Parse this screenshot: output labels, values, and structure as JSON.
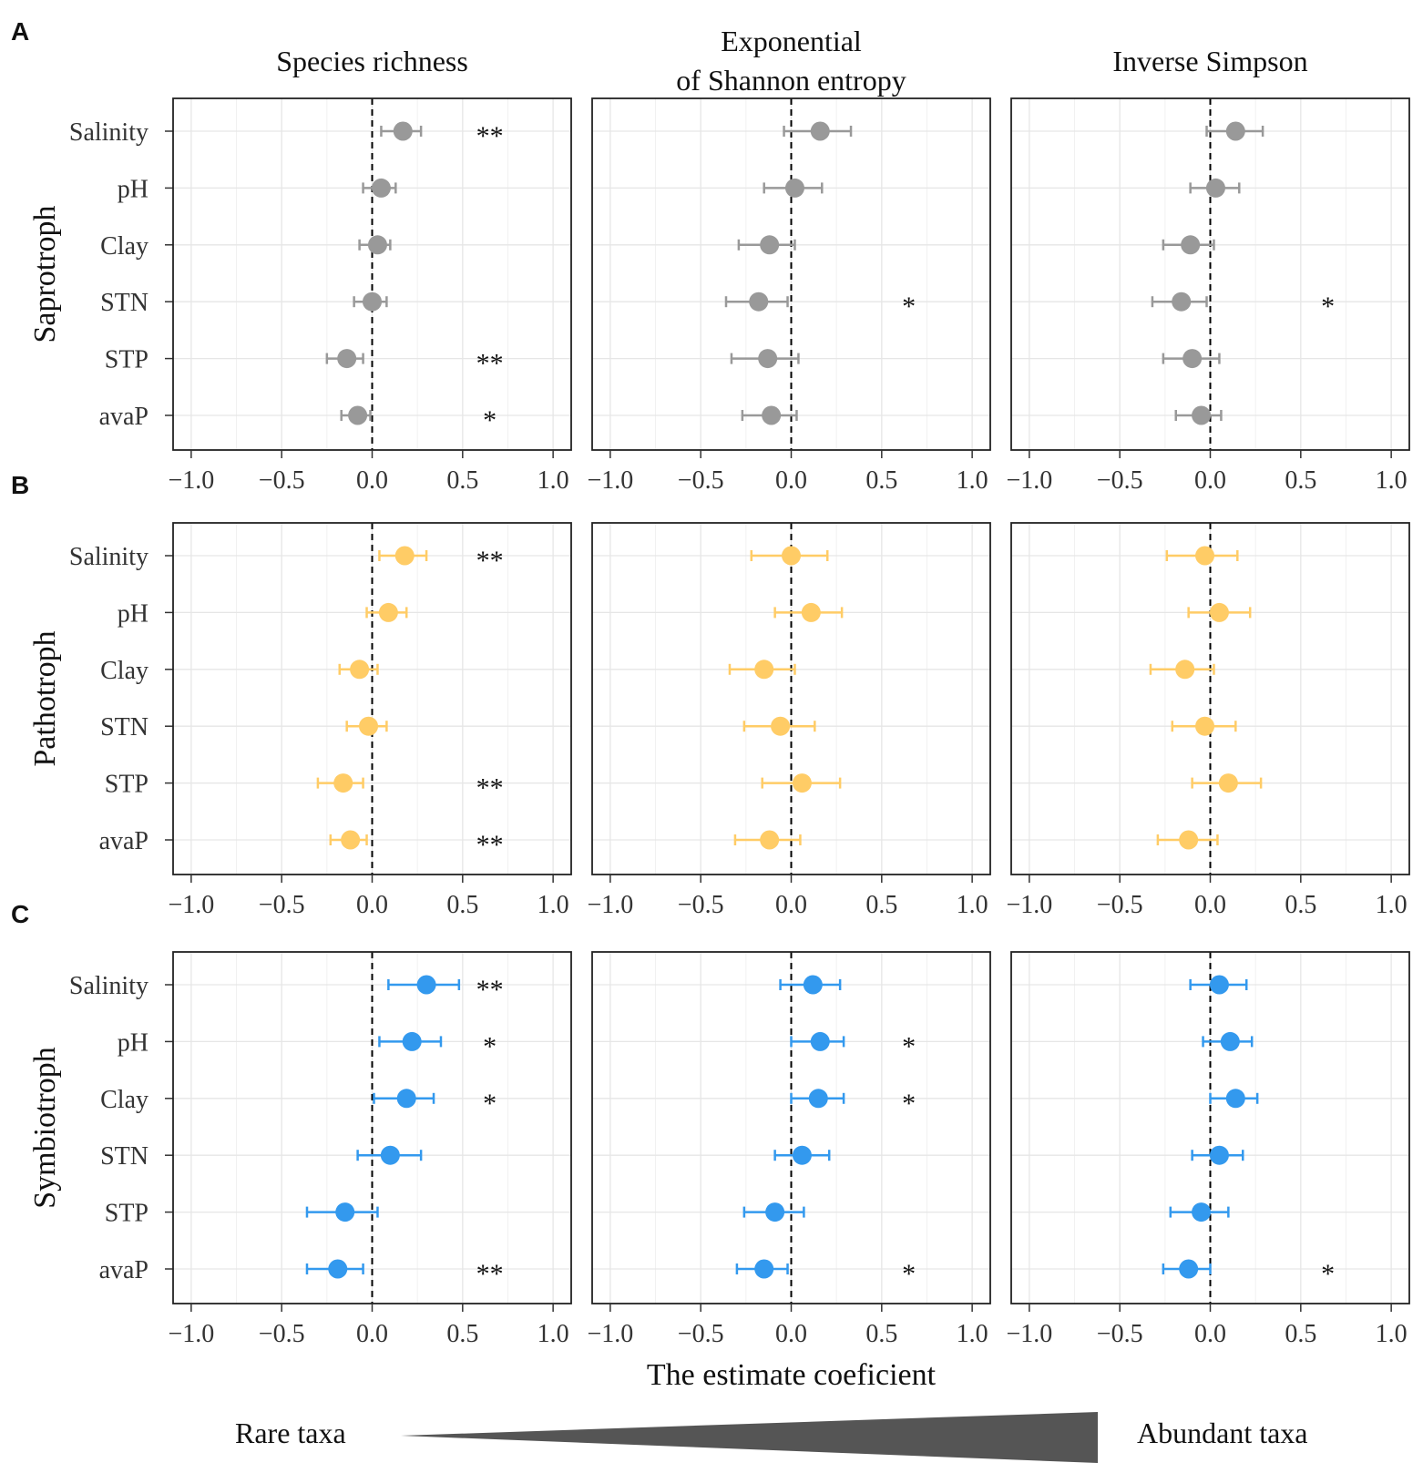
{
  "figure": {
    "column_titles": [
      {
        "lines": [
          "Species richness"
        ]
      },
      {
        "lines": [
          "Exponential",
          "of Shannon entropy"
        ]
      },
      {
        "lines": [
          "Inverse Simpson"
        ]
      }
    ],
    "xlabel": "The estimate coeficient",
    "gradient": {
      "left_label": "Rare taxa",
      "right_label": "Abundant taxa",
      "color": "#555555"
    },
    "xlim": [
      -1.1,
      1.1
    ],
    "xticks": [
      -1.0,
      -0.5,
      0.0,
      0.5,
      1.0
    ],
    "xtick_labels": [
      "−1.0",
      "−0.5",
      "0.0",
      "0.5",
      "1.0"
    ],
    "variables": [
      "Salinity",
      "pH",
      "Clay",
      "STN",
      "STP",
      "avaP"
    ]
  },
  "chart_data": [
    {
      "panel_letter": "A",
      "type": "scatter",
      "group": "Saprotroph",
      "color": "#999999",
      "panels": [
        {
          "title": "Species richness",
          "estimates": [
            0.17,
            0.05,
            0.03,
            0.0,
            -0.14,
            -0.08
          ],
          "lower": [
            0.05,
            -0.05,
            -0.07,
            -0.1,
            -0.25,
            -0.17
          ],
          "upper": [
            0.27,
            0.13,
            0.1,
            0.08,
            -0.05,
            -0.01
          ],
          "significance": [
            "**",
            "",
            "",
            "",
            "**",
            "*"
          ]
        },
        {
          "title": "Exponential of Shannon entropy",
          "estimates": [
            0.16,
            0.02,
            -0.12,
            -0.18,
            -0.13,
            -0.11
          ],
          "lower": [
            -0.04,
            -0.15,
            -0.29,
            -0.36,
            -0.33,
            -0.27
          ],
          "upper": [
            0.33,
            0.17,
            0.02,
            -0.02,
            0.04,
            0.03
          ],
          "significance": [
            "",
            "",
            "",
            "*",
            "",
            ""
          ]
        },
        {
          "title": "Inverse Simpson",
          "estimates": [
            0.14,
            0.03,
            -0.11,
            -0.16,
            -0.1,
            -0.05
          ],
          "lower": [
            -0.02,
            -0.11,
            -0.26,
            -0.32,
            -0.26,
            -0.19
          ],
          "upper": [
            0.29,
            0.16,
            0.02,
            -0.02,
            0.05,
            0.06
          ],
          "significance": [
            "",
            "",
            "",
            "*",
            "",
            ""
          ]
        }
      ]
    },
    {
      "panel_letter": "B",
      "type": "scatter",
      "group": "Pathotroph",
      "color": "#FFCC66",
      "panels": [
        {
          "title": "Species richness",
          "estimates": [
            0.18,
            0.09,
            -0.07,
            -0.02,
            -0.16,
            -0.12
          ],
          "lower": [
            0.04,
            -0.03,
            -0.18,
            -0.14,
            -0.3,
            -0.23
          ],
          "upper": [
            0.3,
            0.19,
            0.03,
            0.08,
            -0.05,
            -0.03
          ],
          "significance": [
            "**",
            "",
            "",
            "",
            "**",
            "**"
          ]
        },
        {
          "title": "Exponential of Shannon entropy",
          "estimates": [
            0.0,
            0.11,
            -0.15,
            -0.06,
            0.06,
            -0.12
          ],
          "lower": [
            -0.22,
            -0.09,
            -0.34,
            -0.26,
            -0.16,
            -0.31
          ],
          "upper": [
            0.2,
            0.28,
            0.02,
            0.13,
            0.27,
            0.05
          ],
          "significance": [
            "",
            "",
            "",
            "",
            "",
            ""
          ]
        },
        {
          "title": "Inverse Simpson",
          "estimates": [
            -0.03,
            0.05,
            -0.14,
            -0.03,
            0.1,
            -0.12
          ],
          "lower": [
            -0.24,
            -0.12,
            -0.33,
            -0.21,
            -0.1,
            -0.29
          ],
          "upper": [
            0.15,
            0.22,
            0.02,
            0.14,
            0.28,
            0.04
          ],
          "significance": [
            "",
            "",
            "",
            "",
            "",
            ""
          ]
        }
      ]
    },
    {
      "panel_letter": "C",
      "type": "scatter",
      "group": "Symbiotroph",
      "color": "#3399EE",
      "panels": [
        {
          "title": "Species richness",
          "estimates": [
            0.3,
            0.22,
            0.19,
            0.1,
            -0.15,
            -0.19
          ],
          "lower": [
            0.09,
            0.04,
            0.01,
            -0.08,
            -0.36,
            -0.36
          ],
          "upper": [
            0.48,
            0.38,
            0.34,
            0.27,
            0.03,
            -0.05
          ],
          "significance": [
            "**",
            "*",
            "*",
            "",
            "",
            "**"
          ]
        },
        {
          "title": "Exponential of Shannon entropy",
          "estimates": [
            0.12,
            0.16,
            0.15,
            0.06,
            -0.09,
            -0.15
          ],
          "lower": [
            -0.06,
            0.0,
            0.0,
            -0.09,
            -0.26,
            -0.3
          ],
          "upper": [
            0.27,
            0.29,
            0.29,
            0.21,
            0.07,
            -0.02
          ],
          "significance": [
            "",
            "*",
            "*",
            "",
            "",
            "*"
          ]
        },
        {
          "title": "Inverse Simpson",
          "estimates": [
            0.05,
            0.11,
            0.14,
            0.05,
            -0.05,
            -0.12
          ],
          "lower": [
            -0.11,
            -0.04,
            0.0,
            -0.1,
            -0.22,
            -0.26
          ],
          "upper": [
            0.2,
            0.23,
            0.26,
            0.18,
            0.1,
            0.0
          ],
          "significance": [
            "",
            "",
            "",
            "",
            "",
            "*"
          ]
        }
      ]
    }
  ]
}
